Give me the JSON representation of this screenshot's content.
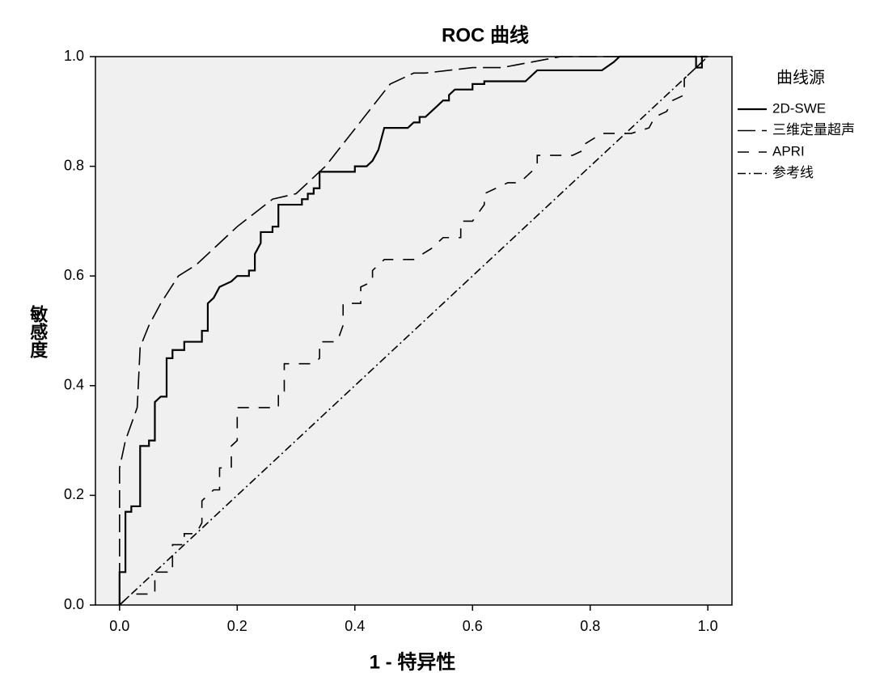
{
  "chart_data": {
    "type": "line",
    "title": "ROC 曲线",
    "x_label": "1 - 特异性",
    "y_label": "敏感度",
    "legend_title": "曲线源",
    "legend_position": "right",
    "xlim": [
      -0.041,
      1.041
    ],
    "ylim": [
      0,
      1
    ],
    "xticks": [
      {
        "value": 0,
        "label": "0.0"
      },
      0.2,
      0.4,
      0.6,
      0.8,
      {
        "value": 1,
        "label": "1.0"
      }
    ],
    "yticks": [
      {
        "value": 0,
        "label": "0.0"
      },
      0.2,
      0.4,
      0.6,
      0.8,
      {
        "value": 1,
        "label": "1.0"
      }
    ],
    "series": [
      {
        "name": "2D-SWE",
        "color": "#000000",
        "style": "solid-thick",
        "x": [
          0,
          0,
          0.01,
          0.01,
          0.02,
          0.02,
          0.035,
          0.035,
          0.05,
          0.05,
          0.06,
          0.06,
          0.07,
          0.08,
          0.08,
          0.09,
          0.09,
          0.11,
          0.11,
          0.14,
          0.14,
          0.15,
          0.15,
          0.16,
          0.17,
          0.19,
          0.2,
          0.22,
          0.22,
          0.23,
          0.23,
          0.24,
          0.24,
          0.26,
          0.26,
          0.27,
          0.27,
          0.31,
          0.31,
          0.32,
          0.32,
          0.33,
          0.33,
          0.34,
          0.34,
          0.4,
          0.4,
          0.42,
          0.43,
          0.44,
          0.45,
          0.49,
          0.5,
          0.51,
          0.51,
          0.52,
          0.54,
          0.55,
          0.56,
          0.56,
          0.57,
          0.6,
          0.6,
          0.62,
          0.62,
          0.69,
          0.71,
          0.82,
          0.84,
          0.85,
          0.98,
          0.98,
          0.99,
          0.99,
          1
        ],
        "values": [
          0,
          0.06,
          0.06,
          0.17,
          0.17,
          0.18,
          0.18,
          0.29,
          0.29,
          0.3,
          0.3,
          0.37,
          0.38,
          0.38,
          0.45,
          0.45,
          0.465,
          0.465,
          0.48,
          0.48,
          0.5,
          0.5,
          0.55,
          0.56,
          0.58,
          0.59,
          0.6,
          0.6,
          0.61,
          0.61,
          0.64,
          0.66,
          0.68,
          0.68,
          0.69,
          0.69,
          0.73,
          0.73,
          0.74,
          0.74,
          0.75,
          0.75,
          0.76,
          0.76,
          0.79,
          0.79,
          0.8,
          0.8,
          0.81,
          0.83,
          0.87,
          0.87,
          0.88,
          0.88,
          0.89,
          0.89,
          0.91,
          0.92,
          0.92,
          0.93,
          0.94,
          0.94,
          0.95,
          0.95,
          0.955,
          0.955,
          0.975,
          0.975,
          0.99,
          1,
          1,
          0.98,
          0.98,
          1,
          1
        ]
      },
      {
        "name": "三维定量超声",
        "color": "#000000",
        "style": "dash-long",
        "x": [
          0,
          0,
          0.01,
          0.02,
          0.03,
          0.035,
          0.05,
          0.07,
          0.1,
          0.13,
          0.2,
          0.26,
          0.3,
          0.35,
          0.46,
          0.5,
          0.52,
          0.6,
          0.65,
          0.7,
          0.75,
          1
        ],
        "values": [
          0,
          0.25,
          0.3,
          0.33,
          0.36,
          0.47,
          0.51,
          0.55,
          0.6,
          0.62,
          0.69,
          0.74,
          0.75,
          0.8,
          0.95,
          0.97,
          0.97,
          0.98,
          0.98,
          0.99,
          1,
          1
        ]
      },
      {
        "name": "APRI",
        "color": "#000000",
        "style": "dash",
        "x": [
          0,
          0.02,
          0.06,
          0.06,
          0.09,
          0.09,
          0.11,
          0.11,
          0.13,
          0.14,
          0.14,
          0.16,
          0.17,
          0.17,
          0.19,
          0.19,
          0.2,
          0.2,
          0.27,
          0.27,
          0.28,
          0.28,
          0.33,
          0.34,
          0.34,
          0.37,
          0.38,
          0.38,
          0.41,
          0.41,
          0.43,
          0.43,
          0.45,
          0.5,
          0.53,
          0.55,
          0.58,
          0.58,
          0.6,
          0.62,
          0.62,
          0.64,
          0.66,
          0.68,
          0.71,
          0.71,
          0.77,
          0.79,
          0.79,
          0.82,
          0.87,
          0.9,
          0.91,
          0.93,
          0.94,
          0.96,
          0.96,
          0.97,
          1
        ],
        "values": [
          0,
          0.02,
          0.02,
          0.06,
          0.06,
          0.11,
          0.11,
          0.13,
          0.13,
          0.15,
          0.19,
          0.21,
          0.21,
          0.25,
          0.25,
          0.29,
          0.3,
          0.36,
          0.36,
          0.39,
          0.39,
          0.44,
          0.44,
          0.45,
          0.48,
          0.48,
          0.51,
          0.55,
          0.55,
          0.58,
          0.59,
          0.61,
          0.63,
          0.63,
          0.65,
          0.67,
          0.67,
          0.7,
          0.7,
          0.73,
          0.75,
          0.76,
          0.77,
          0.77,
          0.8,
          0.82,
          0.82,
          0.83,
          0.84,
          0.86,
          0.86,
          0.87,
          0.89,
          0.9,
          0.92,
          0.93,
          0.96,
          0.97,
          1
        ]
      },
      {
        "name": "参考线",
        "color": "#000000",
        "style": "dash-dot",
        "x": [
          0,
          1
        ],
        "values": [
          0,
          1
        ]
      }
    ]
  }
}
